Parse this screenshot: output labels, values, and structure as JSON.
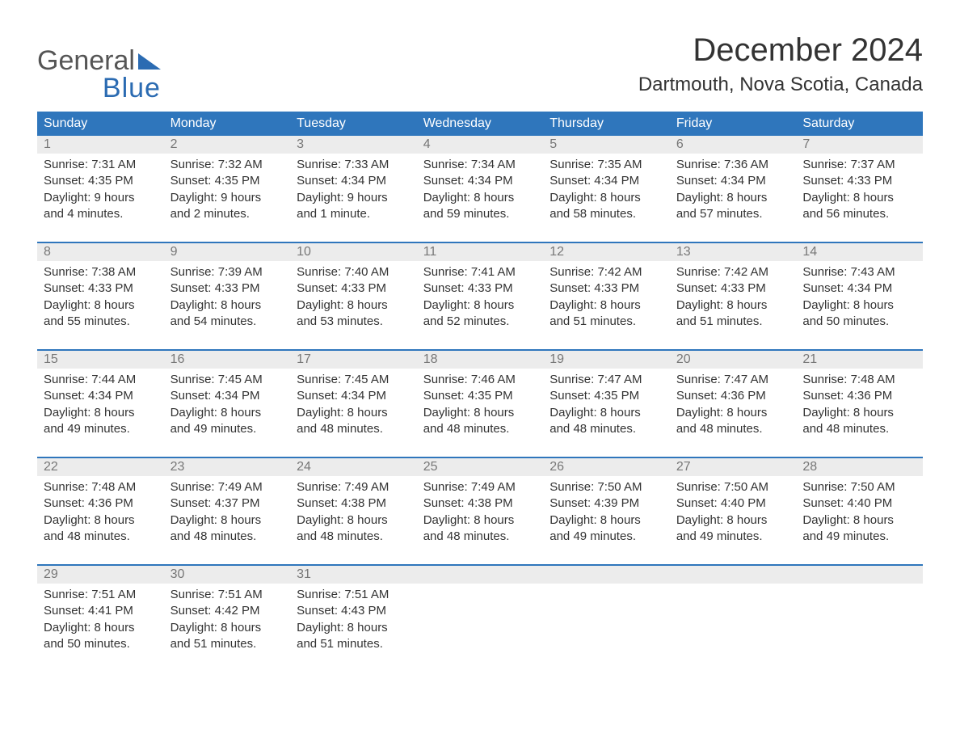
{
  "logo": {
    "top": "General",
    "bottom": "Blue",
    "accent_color": "#2b6bb2",
    "text_color": "#555555"
  },
  "title": "December 2024",
  "location": "Dartmouth, Nova Scotia, Canada",
  "colors": {
    "header_bg": "#2f76bc",
    "header_fg": "#ffffff",
    "daynum_bg": "#ececec",
    "daynum_fg": "#777777",
    "body_fg": "#333333",
    "page_bg": "#ffffff"
  },
  "typography": {
    "title_fontsize": 40,
    "location_fontsize": 24,
    "header_fontsize": 16,
    "body_fontsize": 15
  },
  "day_headers": [
    "Sunday",
    "Monday",
    "Tuesday",
    "Wednesday",
    "Thursday",
    "Friday",
    "Saturday"
  ],
  "weeks": [
    [
      {
        "n": "1",
        "sr": "Sunrise: 7:31 AM",
        "ss": "Sunset: 4:35 PM",
        "dl": "Daylight: 9 hours and 4 minutes."
      },
      {
        "n": "2",
        "sr": "Sunrise: 7:32 AM",
        "ss": "Sunset: 4:35 PM",
        "dl": "Daylight: 9 hours and 2 minutes."
      },
      {
        "n": "3",
        "sr": "Sunrise: 7:33 AM",
        "ss": "Sunset: 4:34 PM",
        "dl": "Daylight: 9 hours and 1 minute."
      },
      {
        "n": "4",
        "sr": "Sunrise: 7:34 AM",
        "ss": "Sunset: 4:34 PM",
        "dl": "Daylight: 8 hours and 59 minutes."
      },
      {
        "n": "5",
        "sr": "Sunrise: 7:35 AM",
        "ss": "Sunset: 4:34 PM",
        "dl": "Daylight: 8 hours and 58 minutes."
      },
      {
        "n": "6",
        "sr": "Sunrise: 7:36 AM",
        "ss": "Sunset: 4:34 PM",
        "dl": "Daylight: 8 hours and 57 minutes."
      },
      {
        "n": "7",
        "sr": "Sunrise: 7:37 AM",
        "ss": "Sunset: 4:33 PM",
        "dl": "Daylight: 8 hours and 56 minutes."
      }
    ],
    [
      {
        "n": "8",
        "sr": "Sunrise: 7:38 AM",
        "ss": "Sunset: 4:33 PM",
        "dl": "Daylight: 8 hours and 55 minutes."
      },
      {
        "n": "9",
        "sr": "Sunrise: 7:39 AM",
        "ss": "Sunset: 4:33 PM",
        "dl": "Daylight: 8 hours and 54 minutes."
      },
      {
        "n": "10",
        "sr": "Sunrise: 7:40 AM",
        "ss": "Sunset: 4:33 PM",
        "dl": "Daylight: 8 hours and 53 minutes."
      },
      {
        "n": "11",
        "sr": "Sunrise: 7:41 AM",
        "ss": "Sunset: 4:33 PM",
        "dl": "Daylight: 8 hours and 52 minutes."
      },
      {
        "n": "12",
        "sr": "Sunrise: 7:42 AM",
        "ss": "Sunset: 4:33 PM",
        "dl": "Daylight: 8 hours and 51 minutes."
      },
      {
        "n": "13",
        "sr": "Sunrise: 7:42 AM",
        "ss": "Sunset: 4:33 PM",
        "dl": "Daylight: 8 hours and 51 minutes."
      },
      {
        "n": "14",
        "sr": "Sunrise: 7:43 AM",
        "ss": "Sunset: 4:34 PM",
        "dl": "Daylight: 8 hours and 50 minutes."
      }
    ],
    [
      {
        "n": "15",
        "sr": "Sunrise: 7:44 AM",
        "ss": "Sunset: 4:34 PM",
        "dl": "Daylight: 8 hours and 49 minutes."
      },
      {
        "n": "16",
        "sr": "Sunrise: 7:45 AM",
        "ss": "Sunset: 4:34 PM",
        "dl": "Daylight: 8 hours and 49 minutes."
      },
      {
        "n": "17",
        "sr": "Sunrise: 7:45 AM",
        "ss": "Sunset: 4:34 PM",
        "dl": "Daylight: 8 hours and 48 minutes."
      },
      {
        "n": "18",
        "sr": "Sunrise: 7:46 AM",
        "ss": "Sunset: 4:35 PM",
        "dl": "Daylight: 8 hours and 48 minutes."
      },
      {
        "n": "19",
        "sr": "Sunrise: 7:47 AM",
        "ss": "Sunset: 4:35 PM",
        "dl": "Daylight: 8 hours and 48 minutes."
      },
      {
        "n": "20",
        "sr": "Sunrise: 7:47 AM",
        "ss": "Sunset: 4:36 PM",
        "dl": "Daylight: 8 hours and 48 minutes."
      },
      {
        "n": "21",
        "sr": "Sunrise: 7:48 AM",
        "ss": "Sunset: 4:36 PM",
        "dl": "Daylight: 8 hours and 48 minutes."
      }
    ],
    [
      {
        "n": "22",
        "sr": "Sunrise: 7:48 AM",
        "ss": "Sunset: 4:36 PM",
        "dl": "Daylight: 8 hours and 48 minutes."
      },
      {
        "n": "23",
        "sr": "Sunrise: 7:49 AM",
        "ss": "Sunset: 4:37 PM",
        "dl": "Daylight: 8 hours and 48 minutes."
      },
      {
        "n": "24",
        "sr": "Sunrise: 7:49 AM",
        "ss": "Sunset: 4:38 PM",
        "dl": "Daylight: 8 hours and 48 minutes."
      },
      {
        "n": "25",
        "sr": "Sunrise: 7:49 AM",
        "ss": "Sunset: 4:38 PM",
        "dl": "Daylight: 8 hours and 48 minutes."
      },
      {
        "n": "26",
        "sr": "Sunrise: 7:50 AM",
        "ss": "Sunset: 4:39 PM",
        "dl": "Daylight: 8 hours and 49 minutes."
      },
      {
        "n": "27",
        "sr": "Sunrise: 7:50 AM",
        "ss": "Sunset: 4:40 PM",
        "dl": "Daylight: 8 hours and 49 minutes."
      },
      {
        "n": "28",
        "sr": "Sunrise: 7:50 AM",
        "ss": "Sunset: 4:40 PM",
        "dl": "Daylight: 8 hours and 49 minutes."
      }
    ],
    [
      {
        "n": "29",
        "sr": "Sunrise: 7:51 AM",
        "ss": "Sunset: 4:41 PM",
        "dl": "Daylight: 8 hours and 50 minutes."
      },
      {
        "n": "30",
        "sr": "Sunrise: 7:51 AM",
        "ss": "Sunset: 4:42 PM",
        "dl": "Daylight: 8 hours and 51 minutes."
      },
      {
        "n": "31",
        "sr": "Sunrise: 7:51 AM",
        "ss": "Sunset: 4:43 PM",
        "dl": "Daylight: 8 hours and 51 minutes."
      },
      null,
      null,
      null,
      null
    ]
  ]
}
